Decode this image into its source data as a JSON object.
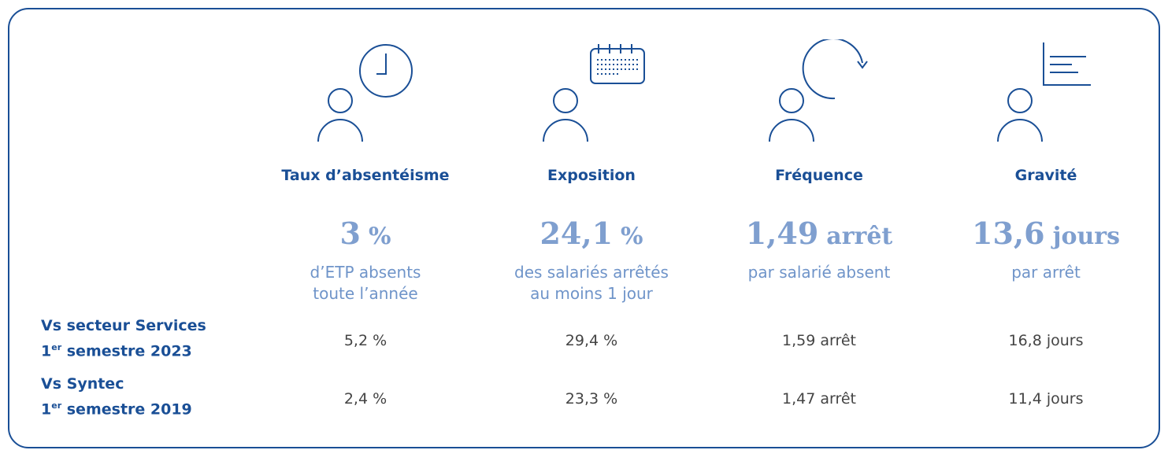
{
  "columns": [
    {
      "title": "Taux d’absentéisme",
      "number": "3",
      "unit": "%",
      "description": [
        "d’ETP absents",
        "toute l’année"
      ],
      "comparisons": [
        "5,2 %",
        "2,4 %"
      ]
    },
    {
      "title": "Exposition",
      "number": "24,1",
      "unit": "%",
      "description": [
        "des salariés arrêtés",
        "au moins 1 jour"
      ],
      "comparisons": [
        "29,4 %",
        "23,3 %"
      ]
    },
    {
      "title": "Fréquence",
      "number": "1,49",
      "unit": "arrêt",
      "description": [
        "par salarié absent"
      ],
      "comparisons": [
        "1,59 arrêt",
        "1,47 arrêt"
      ]
    },
    {
      "title": "Gravité",
      "number": "13,6",
      "unit": "jours",
      "description": [
        "par arrêt"
      ],
      "comparisons": [
        "16,8 jours",
        "11,4 jours"
      ]
    }
  ],
  "rows": [
    {
      "label": "Vs secteur Services",
      "ordinal": "1",
      "suffix": "er",
      "period": "semestre 2023"
    },
    {
      "label": "Vs Syntec",
      "ordinal": "1",
      "suffix": "er",
      "period": "semestre 2019"
    }
  ]
}
